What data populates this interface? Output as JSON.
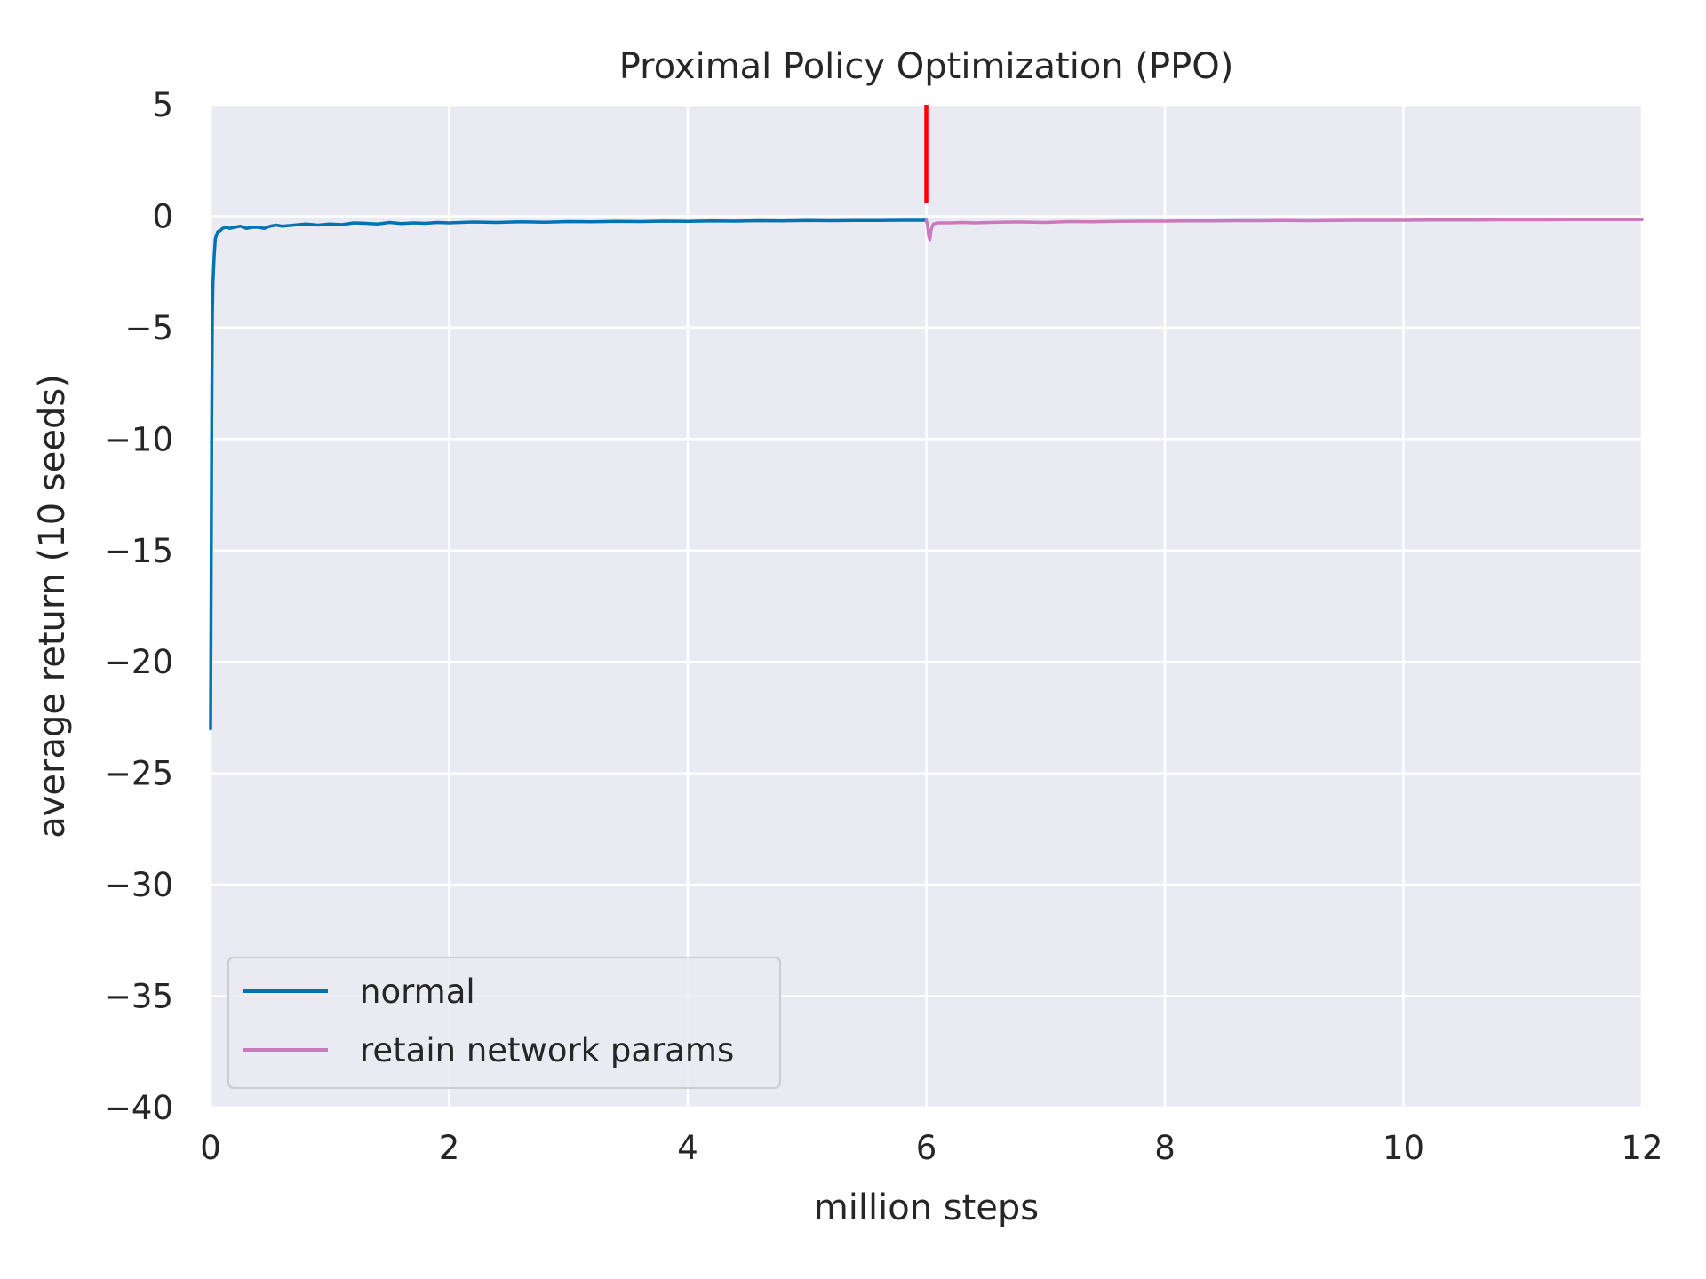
{
  "chart_data": {
    "type": "line",
    "title": "Proximal Policy Optimization (PPO)",
    "xlabel": "million steps",
    "ylabel": "average return (10 seeds)",
    "xlim": [
      0,
      12
    ],
    "ylim": [
      -40,
      5
    ],
    "xticks": [
      0,
      2,
      4,
      6,
      8,
      10,
      12
    ],
    "yticks": [
      5,
      0,
      -5,
      -10,
      -15,
      -20,
      -25,
      -30,
      -35,
      -40
    ],
    "xtick_labels": [
      "0",
      "2",
      "4",
      "6",
      "8",
      "10",
      "12"
    ],
    "ytick_labels": [
      "5",
      "0",
      "−5",
      "−10",
      "−15",
      "−20",
      "−25",
      "−30",
      "−35",
      "−40"
    ],
    "grid": true,
    "legend_position": "lower-left",
    "background_color": "#eaeaf2",
    "series": [
      {
        "name": "normal",
        "color": "#0173b2",
        "x": [
          0.0,
          0.005,
          0.01,
          0.015,
          0.02,
          0.03,
          0.04,
          0.06,
          0.08,
          0.1,
          0.13,
          0.16,
          0.2,
          0.25,
          0.3,
          0.35,
          0.4,
          0.45,
          0.5,
          0.55,
          0.6,
          0.7,
          0.8,
          0.9,
          1.0,
          1.1,
          1.2,
          1.3,
          1.4,
          1.5,
          1.6,
          1.7,
          1.8,
          1.9,
          2.0,
          2.2,
          2.4,
          2.6,
          2.8,
          3.0,
          3.2,
          3.4,
          3.6,
          3.8,
          4.0,
          4.2,
          4.4,
          4.6,
          4.8,
          5.0,
          5.2,
          5.4,
          5.6,
          5.8,
          6.0
        ],
        "y": [
          -23.0,
          -16.0,
          -9.0,
          -4.5,
          -3.0,
          -1.8,
          -1.0,
          -0.7,
          -0.65,
          -0.55,
          -0.5,
          -0.55,
          -0.5,
          -0.45,
          -0.55,
          -0.5,
          -0.5,
          -0.55,
          -0.45,
          -0.4,
          -0.45,
          -0.4,
          -0.35,
          -0.4,
          -0.35,
          -0.38,
          -0.3,
          -0.32,
          -0.35,
          -0.28,
          -0.33,
          -0.3,
          -0.32,
          -0.28,
          -0.3,
          -0.26,
          -0.28,
          -0.25,
          -0.27,
          -0.24,
          -0.25,
          -0.23,
          -0.24,
          -0.22,
          -0.23,
          -0.21,
          -0.22,
          -0.2,
          -0.21,
          -0.19,
          -0.2,
          -0.19,
          -0.19,
          -0.18,
          -0.18
        ]
      },
      {
        "name": "retain network params",
        "color": "#cc78bc",
        "x": [
          6.0,
          6.01,
          6.02,
          6.03,
          6.04,
          6.06,
          6.1,
          6.2,
          6.3,
          6.4,
          6.6,
          6.8,
          7.0,
          7.2,
          7.4,
          7.6,
          7.8,
          8.0,
          8.2,
          8.4,
          8.6,
          8.8,
          9.0,
          9.2,
          9.4,
          9.6,
          9.8,
          10.0,
          10.2,
          10.4,
          10.6,
          10.8,
          11.0,
          11.2,
          11.4,
          11.6,
          11.8,
          12.0
        ],
        "y": [
          -0.2,
          -0.4,
          -0.9,
          -1.05,
          -0.6,
          -0.35,
          -0.3,
          -0.3,
          -0.28,
          -0.3,
          -0.27,
          -0.26,
          -0.28,
          -0.24,
          -0.25,
          -0.23,
          -0.22,
          -0.22,
          -0.21,
          -0.21,
          -0.2,
          -0.2,
          -0.19,
          -0.2,
          -0.19,
          -0.18,
          -0.18,
          -0.18,
          -0.17,
          -0.17,
          -0.17,
          -0.16,
          -0.16,
          -0.16,
          -0.15,
          -0.15,
          -0.15,
          -0.15
        ]
      }
    ],
    "annotations": [
      {
        "type": "vertical-segment",
        "color": "#ff0000",
        "x": 6.0,
        "y_from": 0.6,
        "y_to": 5.0
      }
    ]
  }
}
